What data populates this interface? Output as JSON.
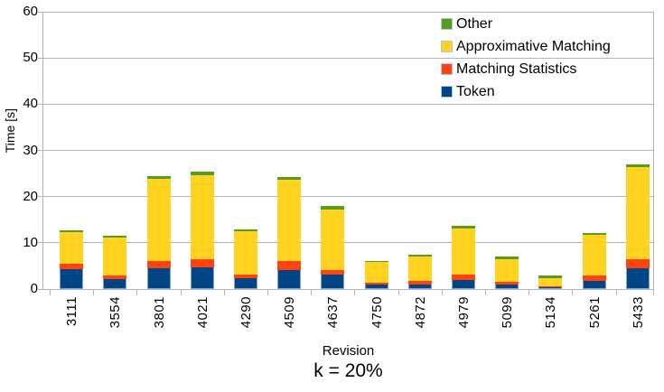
{
  "chart_data": {
    "type": "bar",
    "stacked": true,
    "title": "k = 20%",
    "xlabel": "Revision",
    "ylabel": "Time [s]",
    "ylim": [
      0,
      60
    ],
    "yticks": [
      0,
      10,
      20,
      30,
      40,
      50,
      60
    ],
    "grid": true,
    "legend_position": "top-right-inside",
    "categories": [
      "3111",
      "3554",
      "3801",
      "4021",
      "4290",
      "4509",
      "4637",
      "4750",
      "4872",
      "4979",
      "5099",
      "5134",
      "5261",
      "5433"
    ],
    "series": [
      {
        "name": "Token",
        "color": "#004586",
        "values": [
          4.4,
          2.2,
          4.5,
          4.6,
          2.3,
          4.1,
          3.1,
          0.9,
          0.9,
          2.0,
          1.0,
          0.4,
          1.8,
          4.5
        ]
      },
      {
        "name": "Matching Statistics",
        "color": "#FF420E",
        "values": [
          1.0,
          0.8,
          1.6,
          1.8,
          0.8,
          1.9,
          1.0,
          0.5,
          0.8,
          1.2,
          0.5,
          0.2,
          1.1,
          2.0
        ]
      },
      {
        "name": "Approximative Matching",
        "color": "#FFD320",
        "values": [
          6.9,
          8.2,
          17.7,
          18.3,
          9.5,
          17.6,
          13.2,
          4.4,
          5.4,
          10.0,
          5.0,
          1.7,
          8.8,
          19.8
        ]
      },
      {
        "name": "Other",
        "color": "#579D1C",
        "values": [
          0.5,
          0.4,
          0.6,
          0.7,
          0.4,
          0.6,
          0.6,
          0.3,
          0.4,
          0.5,
          0.5,
          0.6,
          0.5,
          0.7
        ]
      }
    ],
    "totals": [
      12.8,
      11.6,
      24.4,
      25.4,
      13.0,
      24.2,
      17.9,
      6.1,
      7.5,
      13.7,
      7.0,
      2.9,
      12.2,
      27.0
    ],
    "axis_color": "#b3b3b3",
    "gridline_color": "#b3b3b3"
  }
}
